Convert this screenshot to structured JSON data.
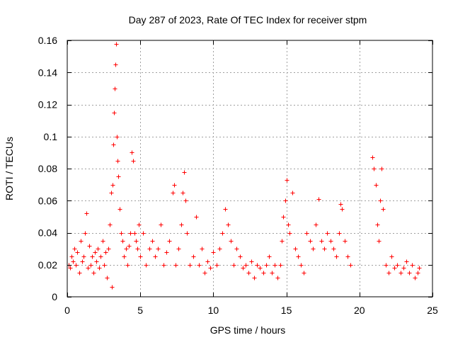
{
  "chart_data": {
    "type": "scatter",
    "title": "Day 287 of 2023, Rate Of TEC Index for receiver stpm",
    "xlabel": "GPS time / hours",
    "ylabel": "ROTI / TECUs",
    "xlim": [
      0,
      25
    ],
    "ylim": [
      0,
      0.16
    ],
    "xticks": [
      0,
      5,
      10,
      15,
      20,
      25
    ],
    "xtick_labels": [
      "0",
      "5",
      "10",
      "15",
      "20",
      "25"
    ],
    "yticks": [
      0,
      0.02,
      0.04,
      0.06,
      0.08,
      0.1,
      0.12,
      0.14,
      0.16
    ],
    "ytick_labels": [
      "0",
      "0.02",
      "0.04",
      "0.06",
      "0.08",
      "0.1",
      "0.12",
      "0.14",
      "0.16"
    ],
    "grid": true,
    "marker": "plus",
    "color": "#ff0000",
    "series": [
      {
        "points": [
          [
            0.1,
            0.02
          ],
          [
            0.2,
            0.018
          ],
          [
            0.3,
            0.025
          ],
          [
            0.4,
            0.022
          ],
          [
            0.5,
            0.03
          ],
          [
            0.6,
            0.02
          ],
          [
            0.7,
            0.028
          ],
          [
            0.8,
            0.015
          ],
          [
            0.9,
            0.035
          ],
          [
            1.0,
            0.022
          ],
          [
            1.1,
            0.025
          ],
          [
            1.2,
            0.04
          ],
          [
            1.3,
            0.052
          ],
          [
            1.4,
            0.018
          ],
          [
            1.5,
            0.032
          ],
          [
            1.6,
            0.02
          ],
          [
            1.7,
            0.025
          ],
          [
            1.8,
            0.015
          ],
          [
            1.9,
            0.028
          ],
          [
            2.0,
            0.022
          ],
          [
            2.1,
            0.03
          ],
          [
            2.2,
            0.018
          ],
          [
            2.3,
            0.025
          ],
          [
            2.4,
            0.035
          ],
          [
            2.5,
            0.02
          ],
          [
            2.6,
            0.028
          ],
          [
            2.7,
            0.012
          ],
          [
            2.8,
            0.03
          ],
          [
            2.9,
            0.045
          ],
          [
            3.0,
            0.065
          ],
          [
            3.05,
            0.006
          ],
          [
            3.1,
            0.07
          ],
          [
            3.15,
            0.095
          ],
          [
            3.2,
            0.115
          ],
          [
            3.25,
            0.13
          ],
          [
            3.3,
            0.145
          ],
          [
            3.35,
            0.158
          ],
          [
            3.4,
            0.1
          ],
          [
            3.45,
            0.085
          ],
          [
            3.5,
            0.075
          ],
          [
            3.6,
            0.055
          ],
          [
            3.7,
            0.04
          ],
          [
            3.8,
            0.035
          ],
          [
            3.9,
            0.025
          ],
          [
            4.0,
            0.03
          ],
          [
            4.1,
            0.02
          ],
          [
            4.2,
            0.032
          ],
          [
            4.3,
            0.04
          ],
          [
            4.4,
            0.09
          ],
          [
            4.5,
            0.085
          ],
          [
            4.6,
            0.04
          ],
          [
            4.7,
            0.035
          ],
          [
            4.8,
            0.03
          ],
          [
            4.9,
            0.045
          ],
          [
            5.0,
            0.025
          ],
          [
            5.2,
            0.04
          ],
          [
            5.4,
            0.02
          ],
          [
            5.6,
            0.03
          ],
          [
            5.8,
            0.035
          ],
          [
            6.0,
            0.025
          ],
          [
            6.2,
            0.03
          ],
          [
            6.4,
            0.045
          ],
          [
            6.6,
            0.02
          ],
          [
            6.8,
            0.028
          ],
          [
            7.0,
            0.035
          ],
          [
            7.2,
            0.065
          ],
          [
            7.3,
            0.07
          ],
          [
            7.4,
            0.02
          ],
          [
            7.6,
            0.03
          ],
          [
            7.8,
            0.045
          ],
          [
            7.9,
            0.065
          ],
          [
            8.0,
            0.078
          ],
          [
            8.1,
            0.06
          ],
          [
            8.2,
            0.04
          ],
          [
            8.4,
            0.02
          ],
          [
            8.6,
            0.025
          ],
          [
            8.8,
            0.05
          ],
          [
            9.0,
            0.02
          ],
          [
            9.2,
            0.03
          ],
          [
            9.4,
            0.015
          ],
          [
            9.6,
            0.022
          ],
          [
            9.8,
            0.018
          ],
          [
            10.0,
            0.028
          ],
          [
            10.2,
            0.02
          ],
          [
            10.4,
            0.03
          ],
          [
            10.6,
            0.04
          ],
          [
            10.8,
            0.055
          ],
          [
            11.0,
            0.045
          ],
          [
            11.2,
            0.035
          ],
          [
            11.4,
            0.02
          ],
          [
            11.6,
            0.03
          ],
          [
            11.8,
            0.025
          ],
          [
            12.0,
            0.018
          ],
          [
            12.2,
            0.02
          ],
          [
            12.4,
            0.015
          ],
          [
            12.6,
            0.022
          ],
          [
            12.8,
            0.012
          ],
          [
            13.0,
            0.02
          ],
          [
            13.2,
            0.018
          ],
          [
            13.4,
            0.015
          ],
          [
            13.6,
            0.02
          ],
          [
            13.8,
            0.025
          ],
          [
            14.0,
            0.015
          ],
          [
            14.2,
            0.02
          ],
          [
            14.4,
            0.012
          ],
          [
            14.6,
            0.02
          ],
          [
            14.7,
            0.035
          ],
          [
            14.8,
            0.05
          ],
          [
            14.9,
            0.06
          ],
          [
            15.0,
            0.073
          ],
          [
            15.1,
            0.045
          ],
          [
            15.2,
            0.04
          ],
          [
            15.4,
            0.065
          ],
          [
            15.6,
            0.03
          ],
          [
            15.8,
            0.025
          ],
          [
            16.0,
            0.02
          ],
          [
            16.2,
            0.015
          ],
          [
            16.4,
            0.04
          ],
          [
            16.6,
            0.035
          ],
          [
            16.8,
            0.03
          ],
          [
            17.0,
            0.045
          ],
          [
            17.2,
            0.061
          ],
          [
            17.4,
            0.035
          ],
          [
            17.6,
            0.03
          ],
          [
            17.8,
            0.04
          ],
          [
            18.0,
            0.035
          ],
          [
            18.2,
            0.03
          ],
          [
            18.4,
            0.025
          ],
          [
            18.6,
            0.04
          ],
          [
            18.7,
            0.058
          ],
          [
            18.8,
            0.055
          ],
          [
            19.0,
            0.035
          ],
          [
            19.2,
            0.025
          ],
          [
            19.4,
            0.02
          ],
          [
            20.9,
            0.087
          ],
          [
            21.0,
            0.08
          ],
          [
            21.1,
            0.07
          ],
          [
            21.2,
            0.045
          ],
          [
            21.3,
            0.035
          ],
          [
            21.4,
            0.06
          ],
          [
            21.5,
            0.08
          ],
          [
            21.6,
            0.055
          ],
          [
            21.8,
            0.02
          ],
          [
            22.0,
            0.015
          ],
          [
            22.2,
            0.025
          ],
          [
            22.4,
            0.018
          ],
          [
            22.6,
            0.02
          ],
          [
            22.8,
            0.015
          ],
          [
            23.0,
            0.018
          ],
          [
            23.2,
            0.022
          ],
          [
            23.4,
            0.015
          ],
          [
            23.6,
            0.02
          ],
          [
            23.8,
            0.012
          ],
          [
            24.0,
            0.015
          ],
          [
            24.1,
            0.018
          ]
        ]
      }
    ]
  }
}
